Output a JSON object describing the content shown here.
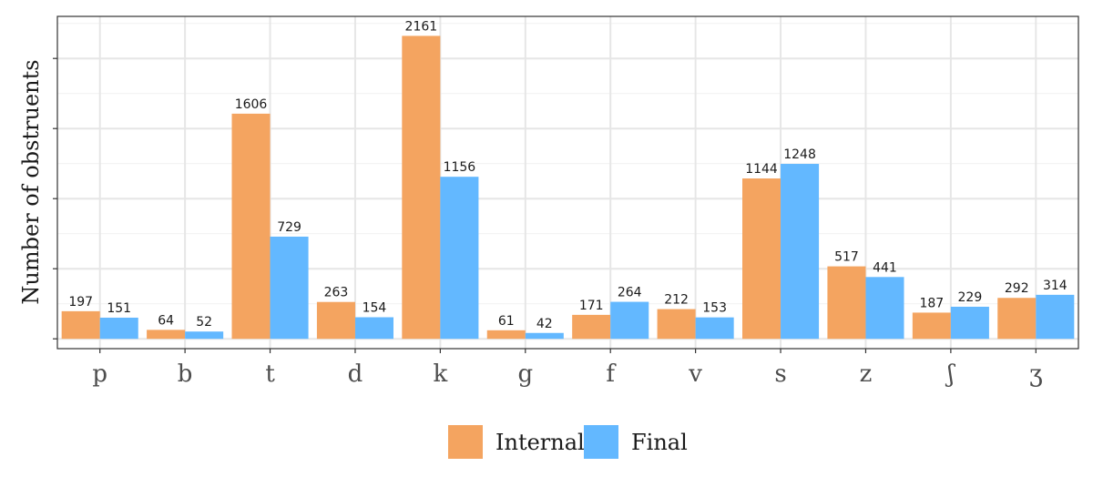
{
  "chart_data": {
    "type": "bar",
    "ylabel": "Number of obstruents",
    "categories": [
      "p",
      "b",
      "t",
      "d",
      "k",
      "g",
      "f",
      "v",
      "s",
      "z",
      "ʃ",
      "ʒ"
    ],
    "series": [
      {
        "name": "Internal",
        "color": "#F4A460",
        "values": [
          197,
          64,
          1606,
          263,
          2161,
          61,
          171,
          212,
          1144,
          517,
          187,
          292
        ]
      },
      {
        "name": "Final",
        "color": "#63B8FF",
        "values": [
          151,
          52,
          729,
          154,
          1156,
          42,
          264,
          153,
          1248,
          441,
          229,
          314
        ]
      }
    ],
    "ylim": [
      -70,
      2300
    ],
    "y_tick_values": [
      0,
      500,
      1000,
      1500,
      2000
    ],
    "grid": true,
    "legend_position": "bottom"
  }
}
